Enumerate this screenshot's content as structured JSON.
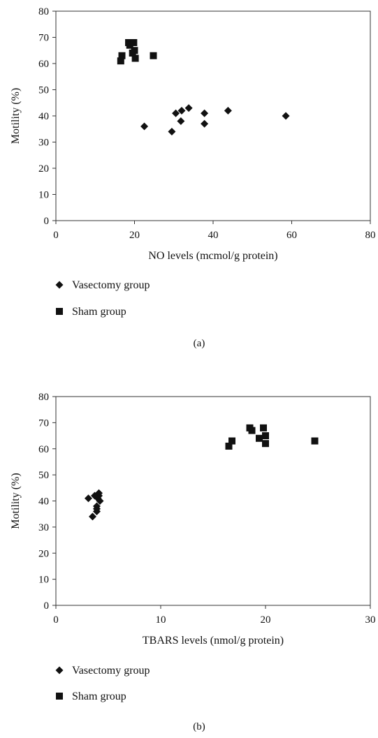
{
  "chart_data": [
    {
      "type": "scatter",
      "panel_label": "(a)",
      "title": "",
      "xlabel": "NO levels (mcmol/g protein)",
      "ylabel": "Motility (%)",
      "xlim": [
        0,
        80
      ],
      "ylim": [
        0,
        80
      ],
      "xticks": [
        "0",
        "20",
        "40",
        "60",
        "80"
      ],
      "yticks": [
        "0",
        "10",
        "20",
        "30",
        "40",
        "50",
        "60",
        "70",
        "80"
      ],
      "grid": false,
      "legend_position": "bottom-left",
      "series": [
        {
          "name": "Vasectomy group",
          "marker": "diamond",
          "color": "#111111",
          "points": [
            {
              "x": 22.5,
              "y": 36
            },
            {
              "x": 29.5,
              "y": 34
            },
            {
              "x": 30.5,
              "y": 41
            },
            {
              "x": 31.8,
              "y": 38
            },
            {
              "x": 32.0,
              "y": 42
            },
            {
              "x": 33.8,
              "y": 43
            },
            {
              "x": 37.8,
              "y": 41
            },
            {
              "x": 37.8,
              "y": 37
            },
            {
              "x": 43.8,
              "y": 42
            },
            {
              "x": 58.5,
              "y": 40
            }
          ]
        },
        {
          "name": "Sham group",
          "marker": "square",
          "color": "#111111",
          "points": [
            {
              "x": 16.5,
              "y": 61
            },
            {
              "x": 16.8,
              "y": 63
            },
            {
              "x": 18.5,
              "y": 68
            },
            {
              "x": 18.8,
              "y": 67
            },
            {
              "x": 19.5,
              "y": 64
            },
            {
              "x": 19.8,
              "y": 68
            },
            {
              "x": 20.0,
              "y": 65
            },
            {
              "x": 20.2,
              "y": 62
            },
            {
              "x": 24.8,
              "y": 63
            }
          ]
        }
      ]
    },
    {
      "type": "scatter",
      "panel_label": "(b)",
      "title": "",
      "xlabel": "TBARS levels (nmol/g protein)",
      "ylabel": "Motility (%)",
      "xlim": [
        0,
        30
      ],
      "ylim": [
        0,
        80
      ],
      "xticks": [
        "0",
        "10",
        "20",
        "30"
      ],
      "yticks": [
        "0",
        "10",
        "20",
        "30",
        "40",
        "50",
        "60",
        "70",
        "80"
      ],
      "grid": false,
      "legend_position": "bottom-left",
      "series": [
        {
          "name": "Vasectomy group",
          "marker": "diamond",
          "color": "#111111",
          "points": [
            {
              "x": 3.1,
              "y": 41
            },
            {
              "x": 3.5,
              "y": 34
            },
            {
              "x": 3.7,
              "y": 42
            },
            {
              "x": 3.9,
              "y": 36
            },
            {
              "x": 3.9,
              "y": 38
            },
            {
              "x": 3.9,
              "y": 37
            },
            {
              "x": 4.0,
              "y": 41
            },
            {
              "x": 4.1,
              "y": 42
            },
            {
              "x": 4.1,
              "y": 43
            },
            {
              "x": 4.2,
              "y": 40
            }
          ]
        },
        {
          "name": "Sham group",
          "marker": "square",
          "color": "#111111",
          "points": [
            {
              "x": 16.5,
              "y": 61
            },
            {
              "x": 16.8,
              "y": 63
            },
            {
              "x": 18.5,
              "y": 68
            },
            {
              "x": 18.7,
              "y": 67
            },
            {
              "x": 19.4,
              "y": 64
            },
            {
              "x": 19.8,
              "y": 68
            },
            {
              "x": 20.0,
              "y": 65
            },
            {
              "x": 20.0,
              "y": 62
            },
            {
              "x": 24.7,
              "y": 63
            }
          ]
        }
      ]
    }
  ]
}
